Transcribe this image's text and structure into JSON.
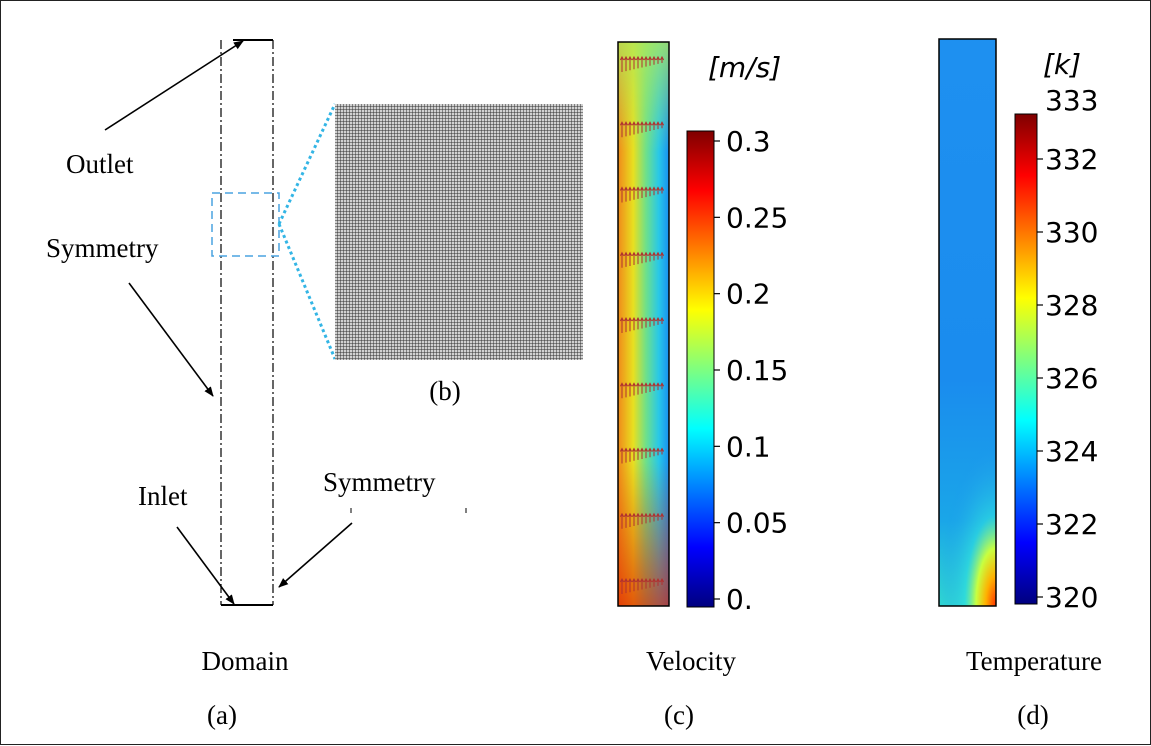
{
  "panel_a": {
    "caption": "Domain",
    "letter": "(a)",
    "labels": {
      "outlet": "Outlet",
      "symmetry_left": "Symmetry",
      "inlet": "Inlet",
      "symmetry_right": "Symmetry"
    }
  },
  "panel_b": {
    "letter": "(b)"
  },
  "panel_c": {
    "caption": "Velocity",
    "letter": "(c)",
    "unit": "[m/s]",
    "colorbar_ticks": [
      "0.3",
      "0.25",
      "0.2",
      "0.15",
      "0.1",
      "0.05",
      "0."
    ]
  },
  "panel_d": {
    "caption": "Temperature",
    "letter": "(d)",
    "unit": "[k]",
    "colorbar_top": "333",
    "colorbar_ticks": [
      "332",
      "330",
      "328",
      "326",
      "324",
      "322",
      "320"
    ]
  },
  "colors": {
    "selection": "#4aa3e0",
    "zoom_lines": "#33b5e5",
    "mesh": "#3c3c3c",
    "arrows": "#b03030"
  },
  "colormap": "jet"
}
